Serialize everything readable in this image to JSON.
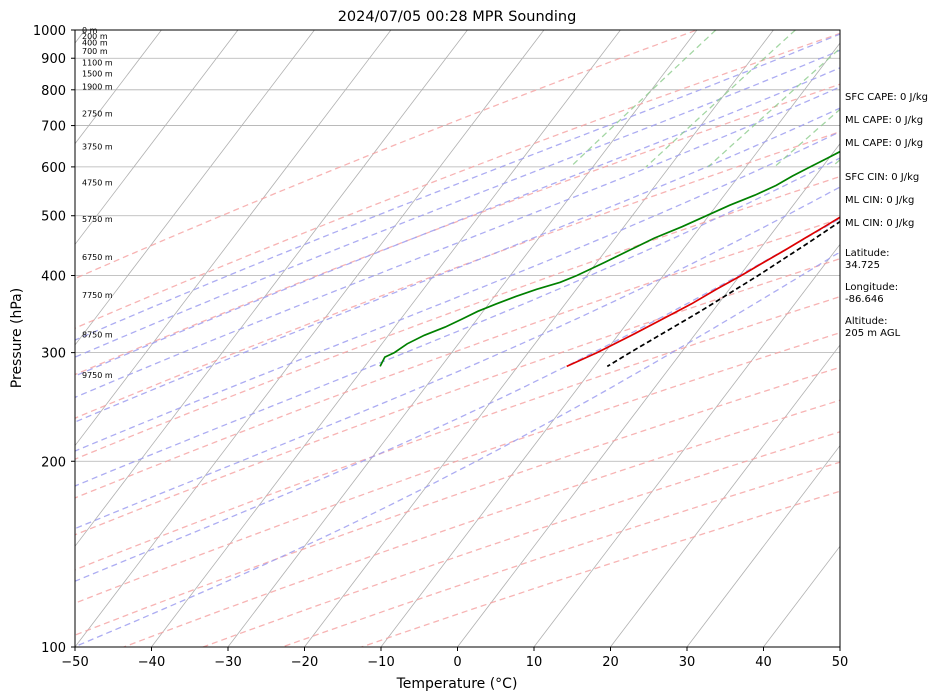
{
  "chart_data": {
    "type": "line",
    "title": "2024/07/05 00:28 MPR Sounding",
    "xlabel": "Temperature (°C)",
    "ylabel": "Pressure (hPa)",
    "xlim": [
      -50,
      50
    ],
    "ylim": [
      1000,
      100
    ],
    "y_scale": "log",
    "grid": true,
    "x_ticks": [
      "−50",
      "−40",
      "−30",
      "−20",
      "−10",
      "0",
      "10",
      "20",
      "30",
      "40",
      "50"
    ],
    "y_ticks": [
      {
        "p": 100,
        "label": "100"
      },
      {
        "p": 200,
        "label": "200"
      },
      {
        "p": 300,
        "label": "300"
      },
      {
        "p": 400,
        "label": "400"
      },
      {
        "p": 500,
        "label": "500"
      },
      {
        "p": 600,
        "label": "600"
      },
      {
        "p": 700,
        "label": "700"
      },
      {
        "p": 800,
        "label": "800"
      },
      {
        "p": 900,
        "label": "900"
      },
      {
        "p": 1000,
        "label": "1000"
      }
    ],
    "height_labels": [
      {
        "p": 1000,
        "text": "0 m"
      },
      {
        "p": 977,
        "text": "200 m"
      },
      {
        "p": 955,
        "text": "400 m"
      },
      {
        "p": 925,
        "text": "700 m"
      },
      {
        "p": 885,
        "text": "1100 m"
      },
      {
        "p": 850,
        "text": "1500 m"
      },
      {
        "p": 810,
        "text": "1900 m"
      },
      {
        "p": 732,
        "text": "2750 m"
      },
      {
        "p": 648,
        "text": "3750 m"
      },
      {
        "p": 566,
        "text": "4750 m"
      },
      {
        "p": 494,
        "text": "5750 m"
      },
      {
        "p": 429,
        "text": "6750 m"
      },
      {
        "p": 372,
        "text": "7750 m"
      },
      {
        "p": 321,
        "text": "8750 m"
      },
      {
        "p": 276,
        "text": "9750 m"
      }
    ],
    "series": [
      {
        "color": "#dd0000",
        "points": [
          [
            996,
            34
          ],
          [
            980,
            33.5
          ],
          [
            960,
            31.5
          ],
          [
            940,
            29.5
          ],
          [
            920,
            28
          ],
          [
            900,
            26.5
          ],
          [
            880,
            25.5
          ],
          [
            860,
            24
          ],
          [
            850,
            23.2
          ],
          [
            830,
            22.1
          ],
          [
            800,
            20.6
          ],
          [
            770,
            19.6
          ],
          [
            750,
            18.6
          ],
          [
            720,
            17.2
          ],
          [
            700,
            16.6
          ],
          [
            680,
            15.6
          ],
          [
            650,
            14.4
          ],
          [
            620,
            13.1
          ],
          [
            600,
            12.0
          ],
          [
            580,
            11.2
          ],
          [
            560,
            10.2
          ],
          [
            540,
            9.3
          ],
          [
            520,
            8.6
          ],
          [
            500,
            7.5
          ],
          [
            480,
            6.2
          ],
          [
            460,
            4.8
          ],
          [
            440,
            3.4
          ],
          [
            420,
            1.8
          ],
          [
            400,
            0.2
          ],
          [
            380,
            -1.7
          ],
          [
            360,
            -3.5
          ],
          [
            350,
            -4.6
          ],
          [
            340,
            -5.8
          ],
          [
            320,
            -8.2
          ],
          [
            300,
            -11.0
          ],
          [
            285,
            -13.6
          ]
        ]
      },
      {
        "color": "#008000",
        "points": [
          [
            996,
            24
          ],
          [
            990,
            22.4
          ],
          [
            970,
            21.5
          ],
          [
            950,
            20.6
          ],
          [
            930,
            19.5
          ],
          [
            900,
            17.7
          ],
          [
            870,
            16.3
          ],
          [
            850,
            15.2
          ],
          [
            830,
            13.6
          ],
          [
            810,
            12.3
          ],
          [
            790,
            10.8
          ],
          [
            770,
            9.3
          ],
          [
            750,
            7.9
          ],
          [
            730,
            6.5
          ],
          [
            700,
            5.0
          ],
          [
            680,
            3.6
          ],
          [
            660,
            2.3
          ],
          [
            640,
            1.1
          ],
          [
            620,
            -0.2
          ],
          [
            600,
            -1.6
          ],
          [
            580,
            -3.0
          ],
          [
            560,
            -4.2
          ],
          [
            540,
            -6.0
          ],
          [
            520,
            -8.3
          ],
          [
            500,
            -10.3
          ],
          [
            480,
            -12.4
          ],
          [
            460,
            -14.9
          ],
          [
            440,
            -16.9
          ],
          [
            420,
            -19.0
          ],
          [
            400,
            -21.3
          ],
          [
            390,
            -22.8
          ],
          [
            380,
            -25.2
          ],
          [
            370,
            -27.2
          ],
          [
            360,
            -29.0
          ],
          [
            350,
            -30.7
          ],
          [
            340,
            -32.0
          ],
          [
            330,
            -33.4
          ],
          [
            320,
            -35.3
          ],
          [
            310,
            -36.7
          ],
          [
            300,
            -37.5
          ],
          [
            295,
            -38.3
          ],
          [
            285,
            -38.0
          ]
        ]
      },
      {
        "color": "#000000",
        "dashed": true,
        "points": [
          [
            996,
            34.5
          ],
          [
            980,
            33
          ],
          [
            960,
            30.5
          ],
          [
            940,
            28.7
          ],
          [
            920,
            27.2
          ],
          [
            900,
            25.6
          ],
          [
            880,
            24.3
          ],
          [
            860,
            23.1
          ],
          [
            845,
            22.2
          ],
          [
            800,
            20.7
          ],
          [
            750,
            19.0
          ],
          [
            700,
            17.1
          ],
          [
            650,
            15.2
          ],
          [
            600,
            13.1
          ],
          [
            550,
            10.8
          ],
          [
            500,
            8.3
          ],
          [
            450,
            5.6
          ],
          [
            400,
            2.4
          ],
          [
            350,
            -1.6
          ],
          [
            300,
            -6.7
          ],
          [
            285,
            -8.3
          ]
        ]
      }
    ],
    "dry_adiabats_c": [
      -30,
      -10,
      10,
      30,
      50,
      70,
      90,
      110,
      130,
      150,
      170,
      190,
      210,
      230
    ],
    "moist_adiabats_c": [
      -10,
      -5,
      0,
      5,
      10,
      15,
      20,
      25,
      30,
      35
    ],
    "mixing_ratios_gkg": [
      0.4,
      1,
      2,
      4,
      7,
      10,
      16,
      24,
      32
    ]
  },
  "side_panel": {
    "sfc_cape": "SFC CAPE: 0 J/kg",
    "ml_cape_1": "ML CAPE: 0 J/kg",
    "ml_cape_2": "ML CAPE: 0 J/kg",
    "sfc_cin": "SFC CIN: 0 J/kg",
    "ml_cin_1": "ML CIN: 0 J/kg",
    "ml_cin_2": "ML CIN: 0 J/kg",
    "latitude_label": "Latitude:",
    "latitude_value": "34.725",
    "longitude_label": "Longitude:",
    "longitude_value": "-86.646",
    "altitude_label": "Altitude:",
    "altitude_value": "205 m AGL"
  },
  "colors": {
    "temperature": "#dd0000",
    "dewpoint": "#008000",
    "parcel": "#000000",
    "dry_adiabat": "#f5a0a0",
    "moist_adiabat": "#9d9df0",
    "mixing_ratio": "#8ccc8c",
    "isotherm": "#b0b0b0",
    "isobar": "#b0b0b0"
  }
}
